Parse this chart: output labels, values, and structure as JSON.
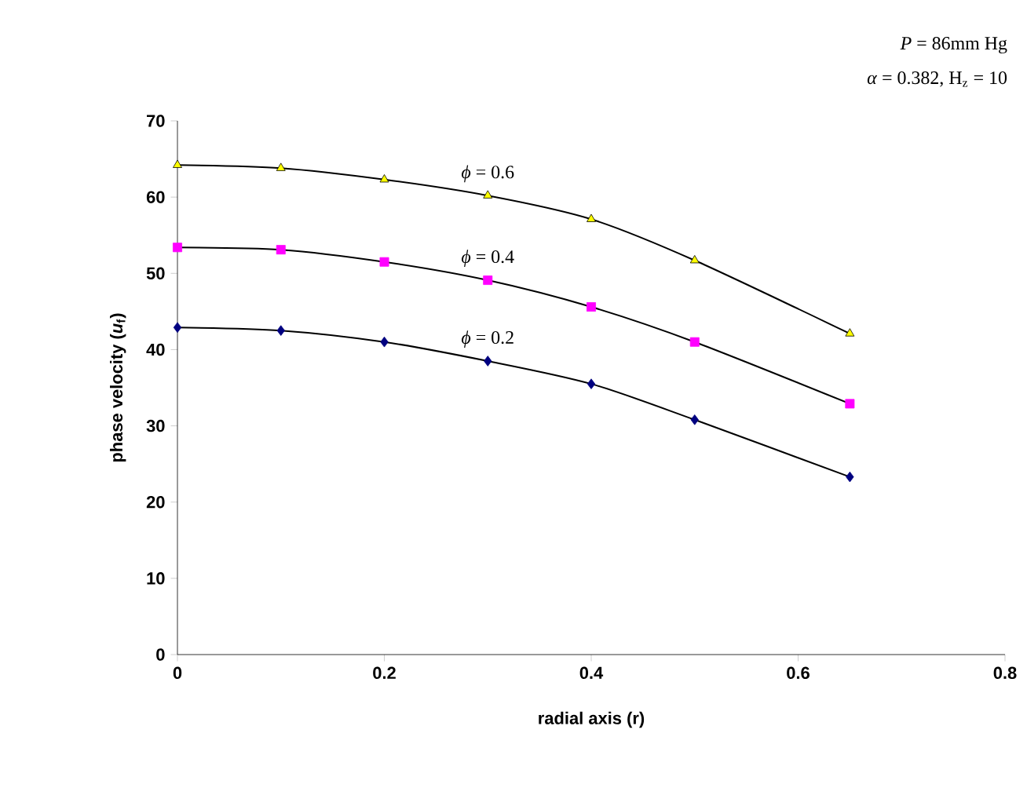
{
  "chart_data": {
    "type": "line",
    "xlabel": "radial axis (r)",
    "ylabel": "phase velocity  (*u*$_{f}$)",
    "xlim": [
      0,
      0.8
    ],
    "xticks": [
      0,
      0.2,
      0.4,
      0.6,
      0.8
    ],
    "ylim": [
      0,
      70
    ],
    "yticks": [
      0,
      10,
      20,
      30,
      40,
      50,
      60,
      70
    ],
    "grid": false,
    "legend": false,
    "annotations": [
      "*P* = 86mm Hg",
      "*α* = 0.382, H$_{z}$ = 10"
    ],
    "series": [
      {
        "name": "*ϕ* = 0.6",
        "color": "#ffff00",
        "marker": "triangle",
        "x": [
          0,
          0.1,
          0.2,
          0.3,
          0.4,
          0.5,
          0.65
        ],
        "values": [
          64.2,
          63.8,
          62.3,
          60.2,
          57.1,
          51.7,
          42.1
        ]
      },
      {
        "name": "*ϕ* = 0.4",
        "color": "#ff00ff",
        "marker": "square",
        "x": [
          0,
          0.1,
          0.2,
          0.3,
          0.4,
          0.5,
          0.65
        ],
        "values": [
          53.4,
          53.1,
          51.5,
          49.1,
          45.6,
          41.0,
          32.9
        ]
      },
      {
        "name": "*ϕ* = 0.2",
        "color": "#000080",
        "marker": "diamond",
        "x": [
          0,
          0.1,
          0.2,
          0.3,
          0.4,
          0.5,
          0.65
        ],
        "values": [
          42.9,
          42.5,
          41.0,
          38.5,
          35.5,
          30.8,
          23.3
        ]
      }
    ]
  }
}
